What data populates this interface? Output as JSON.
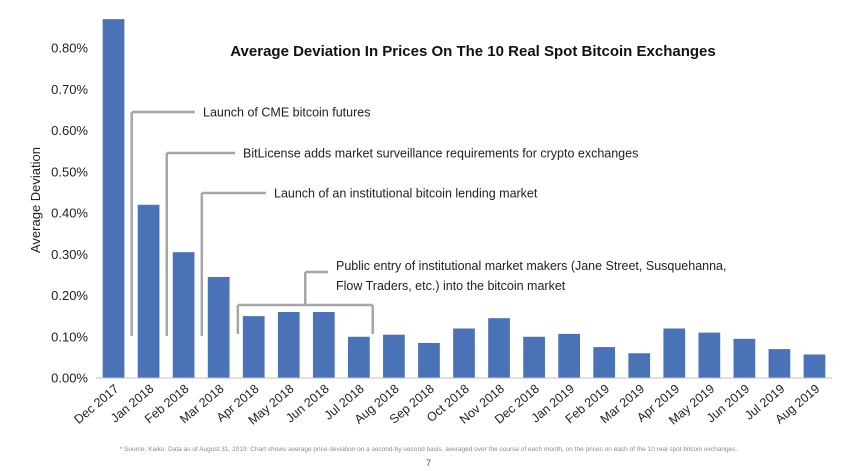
{
  "colors": {
    "bar": "#4a72b6",
    "annotation_line": "#a6a6a6",
    "grid": "#e6e6e6",
    "text": "#222222"
  },
  "chart_data": {
    "type": "bar",
    "title": "Average Deviation In Prices On The 10 Real Spot Bitcoin Exchanges",
    "xlabel": "",
    "ylabel": "Average Deviation",
    "ylim": [
      0,
      0.9
    ],
    "yticks": [
      "0.00%",
      "0.10%",
      "0.20%",
      "0.30%",
      "0.40%",
      "0.50%",
      "0.60%",
      "0.70%",
      "0.80%"
    ],
    "grid": false,
    "categories": [
      "Dec 2017",
      "Jan 2018",
      "Feb 2018",
      "Mar 2018",
      "Apr 2018",
      "May 2018",
      "Jun 2018",
      "Jul 2018",
      "Aug 2018",
      "Sep 2018",
      "Oct 2018",
      "Nov 2018",
      "Dec 2018",
      "Jan 2019",
      "Feb 2019",
      "Mar 2019",
      "Apr 2019",
      "May 2019",
      "Jun 2019",
      "Jul 2019",
      "Aug 2019"
    ],
    "values": [
      0.87,
      0.42,
      0.305,
      0.245,
      0.15,
      0.16,
      0.16,
      0.1,
      0.105,
      0.085,
      0.12,
      0.145,
      0.1,
      0.107,
      0.075,
      0.06,
      0.12,
      0.11,
      0.095,
      0.07,
      0.057
    ],
    "annotations": [
      {
        "text": "Launch of CME bitcoin futures",
        "category_index": 1
      },
      {
        "text": "BitLicense adds market surveillance requirements for crypto exchanges",
        "category_index": 2
      },
      {
        "text": "Launch of an institutional bitcoin lending market",
        "category_index": 3
      },
      {
        "lines": [
          "Public entry of institutional market makers (Jane Street, Susquehanna,",
          "Flow Traders, etc.) into the bitcoin market"
        ],
        "category_range": [
          4,
          7
        ]
      }
    ]
  },
  "footnote": "* Source: Kaiko. Data as of August 31, 2019. Chart shows average price deviation on a second-by-second basis, averaged over the course of each month, on the prices on each of the 10 real spot bitcoin exchanges.",
  "page_number": "7"
}
